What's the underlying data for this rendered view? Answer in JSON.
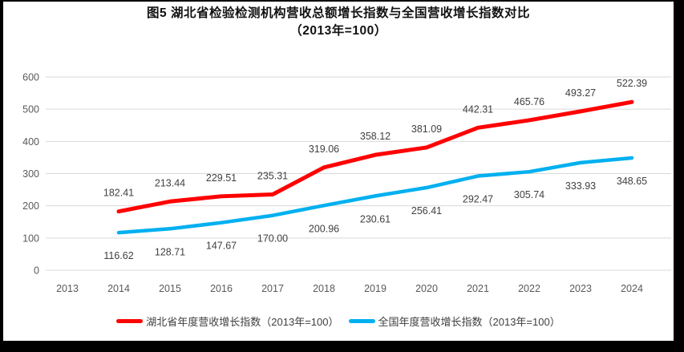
{
  "title": {
    "line1": "图5 湖北省检验检测机构营收总额增长指数与全国营收增长指数对比",
    "line2": "（2013年=100）"
  },
  "chart_data": {
    "type": "line",
    "categories": [
      "2013",
      "2014",
      "2015",
      "2016",
      "2017",
      "2018",
      "2019",
      "2020",
      "2021",
      "2022",
      "2023",
      "2024"
    ],
    "series": [
      {
        "id": "hubei",
        "name": "湖北省年度营收增长指数（2013年=100）",
        "color": "#FF0000",
        "stroke_width": 5,
        "label_side": "above",
        "values": [
          null,
          "182.41",
          "213.44",
          "229.51",
          "235.31",
          "319.06",
          "358.12",
          "381.09",
          "442.31",
          "465.76",
          "493.27",
          "522.39"
        ]
      },
      {
        "id": "national",
        "name": "全国年度营收增长指数（2013年=100）",
        "color": "#00B0F0",
        "stroke_width": 4.5,
        "label_side": "below",
        "values": [
          null,
          "116.62",
          "128.71",
          "147.67",
          "170.00",
          "200.96",
          "230.61",
          "256.41",
          "292.47",
          "305.74",
          "333.93",
          "348.65"
        ]
      }
    ],
    "ylabel": "",
    "xlabel": "",
    "ylim": [
      0,
      600
    ],
    "ytick_step": 100,
    "yticks": [
      "0",
      "100",
      "200",
      "300",
      "400",
      "500",
      "600"
    ],
    "grid": "horizontal",
    "legend_position": "bottom",
    "data_labels": true,
    "colors": {
      "gridline": "#D9D9D9",
      "axis_text": "#595959",
      "data_label_text": "#404040",
      "background": "#FFFFFF",
      "frame_border": "#000000"
    }
  }
}
